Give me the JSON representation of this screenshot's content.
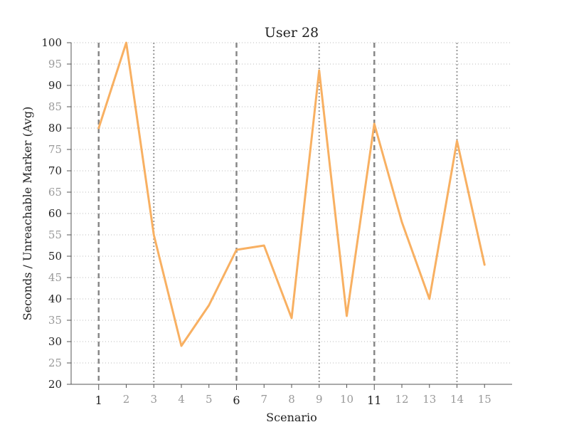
{
  "chart_data": {
    "type": "line",
    "title": "User 28",
    "xlabel": "Scenario",
    "ylabel": "Seconds / Unreachable Marker (Avg)",
    "x": [
      1,
      2,
      3,
      4,
      5,
      6,
      7,
      8,
      9,
      10,
      11,
      12,
      13,
      14,
      15
    ],
    "x_tick_labels": [
      "1",
      "2",
      "3",
      "4",
      "5",
      "6",
      "7",
      "8",
      "9",
      "10",
      "11",
      "12",
      "13",
      "14",
      "15"
    ],
    "major_x": [
      1,
      6,
      11
    ],
    "y_ticks": [
      "20",
      "25",
      "30",
      "35",
      "40",
      "45",
      "50",
      "55",
      "60",
      "65",
      "70",
      "75",
      "80",
      "85",
      "90",
      "95",
      "100"
    ],
    "xlim": [
      0,
      16
    ],
    "ylim": [
      20,
      100
    ],
    "series": [
      {
        "values": [
          80,
          100,
          55,
          29,
          38.5,
          51.5,
          52.5,
          35.5,
          93.5,
          36,
          81,
          58,
          40,
          77,
          48
        ],
        "color": "#f8b062"
      }
    ],
    "vlines": [
      {
        "x": 1,
        "style": "dashed"
      },
      {
        "x": 3,
        "style": "dotted"
      },
      {
        "x": 6,
        "style": "dashed"
      },
      {
        "x": 9,
        "style": "dotted"
      },
      {
        "x": 11,
        "style": "dashed"
      },
      {
        "x": 14,
        "style": "dotted"
      }
    ],
    "grid": "horizontal-dotted"
  }
}
